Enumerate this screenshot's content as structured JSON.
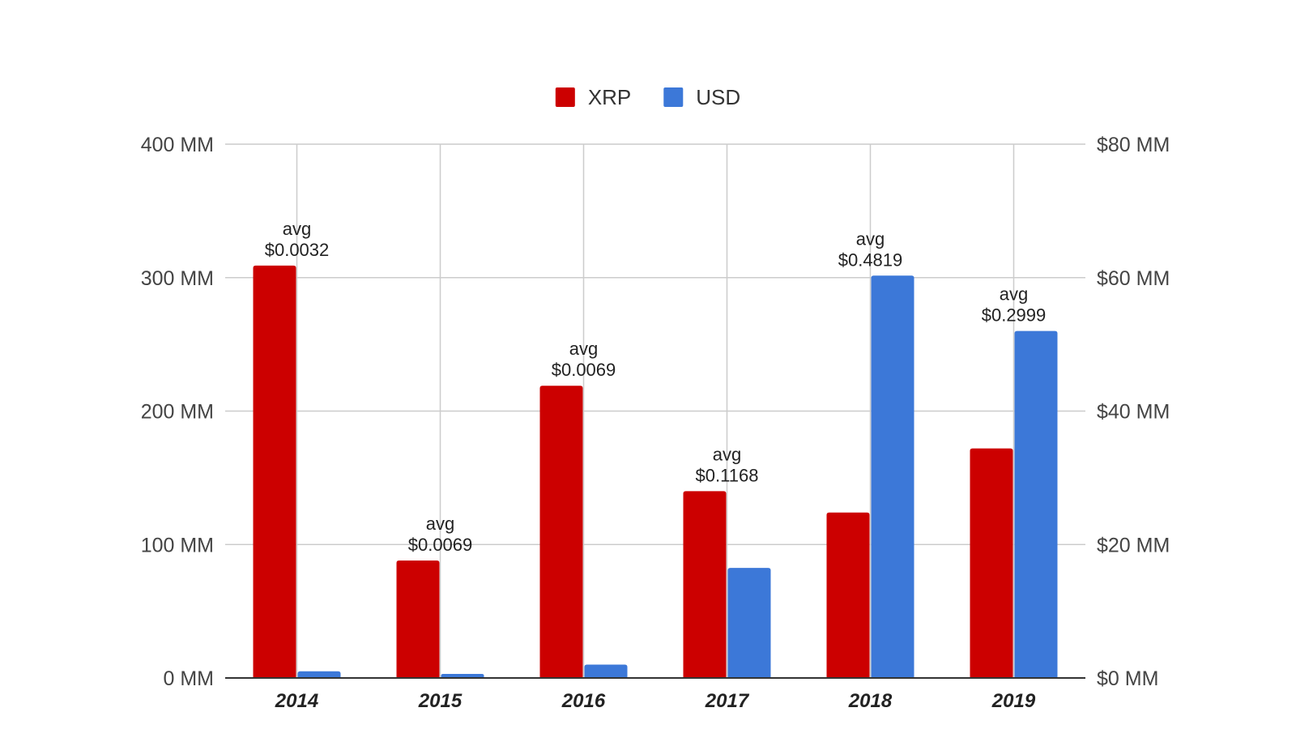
{
  "chart_data": {
    "type": "bar",
    "title": "",
    "xlabel": "",
    "ylabel": "",
    "y2label": "",
    "categories": [
      "2014",
      "2015",
      "2016",
      "2017",
      "2018",
      "2019"
    ],
    "series": [
      {
        "name": "XRP",
        "axis": "left",
        "color": "#cc0000",
        "values": [
          309,
          88,
          219,
          140,
          124,
          172
        ]
      },
      {
        "name": "USD",
        "axis": "right",
        "color": "#3c78d8",
        "values": [
          1.0,
          0.6,
          2.0,
          16.5,
          60.3,
          52.0
        ]
      }
    ],
    "annotations": [
      {
        "category": "2014",
        "lines": [
          "avg",
          "$0.0032"
        ]
      },
      {
        "category": "2015",
        "lines": [
          "avg",
          "$0.0069"
        ]
      },
      {
        "category": "2016",
        "lines": [
          "avg",
          "$0.0069"
        ]
      },
      {
        "category": "2017",
        "lines": [
          "avg",
          "$0.1168"
        ]
      },
      {
        "category": "2018",
        "lines": [
          "avg",
          "$0.4819"
        ]
      },
      {
        "category": "2019",
        "lines": [
          "avg",
          "$0.2999"
        ]
      }
    ],
    "ylim": [
      0,
      400
    ],
    "y2lim": [
      0,
      80
    ],
    "yticks": [
      {
        "value": 0,
        "label": "0 MM"
      },
      {
        "value": 100,
        "label": "100 MM"
      },
      {
        "value": 200,
        "label": "200 MM"
      },
      {
        "value": 300,
        "label": "300 MM"
      },
      {
        "value": 400,
        "label": "400 MM"
      }
    ],
    "y2ticks": [
      {
        "value": 0,
        "label": "$0 MM"
      },
      {
        "value": 20,
        "label": "$20 MM"
      },
      {
        "value": 40,
        "label": "$40 MM"
      },
      {
        "value": 60,
        "label": "$60 MM"
      },
      {
        "value": 80,
        "label": "$80 MM"
      }
    ],
    "grid": true,
    "legend_position": "top-center"
  }
}
